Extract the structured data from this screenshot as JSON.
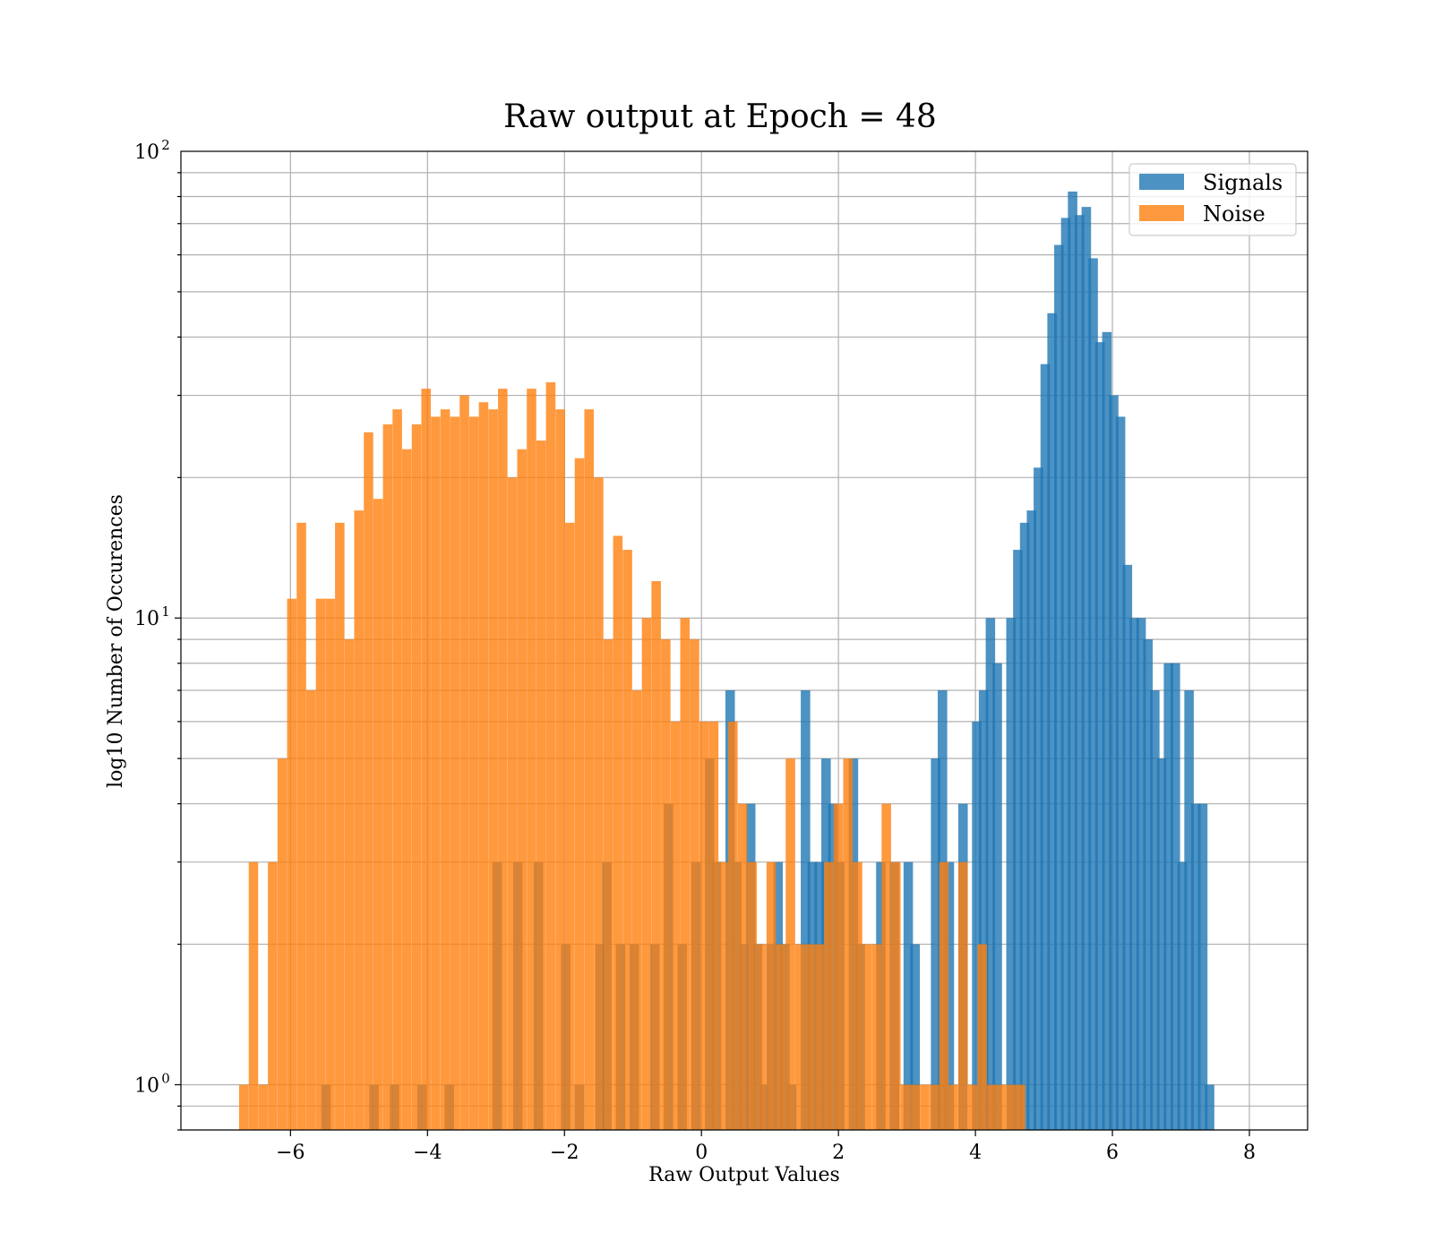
{
  "chart_data": {
    "type": "bar",
    "title": "Raw output at Epoch = 48",
    "xlabel": "Raw Output Values",
    "ylabel": "log10 Number of Occurences",
    "yscale": "log",
    "xlim": [
      -7.6,
      8.85
    ],
    "ylim": [
      0.8,
      100
    ],
    "grid": true,
    "legend_position": "top-right",
    "x_ticks": [
      {
        "value": -6,
        "label": "−6"
      },
      {
        "value": -4,
        "label": "−4"
      },
      {
        "value": -2,
        "label": "−2"
      },
      {
        "value": 0,
        "label": "0"
      },
      {
        "value": 2,
        "label": "2"
      },
      {
        "value": 4,
        "label": "4"
      },
      {
        "value": 6,
        "label": "6"
      },
      {
        "value": 8,
        "label": "8"
      }
    ],
    "y_ticks": [
      {
        "value": 1,
        "base": "10",
        "exp": "0"
      },
      {
        "value": 10,
        "base": "10",
        "exp": "1"
      },
      {
        "value": 100,
        "base": "10",
        "exp": "2"
      }
    ],
    "series": [
      {
        "name": "Signals",
        "color": "#1f77b4",
        "opacity": 0.8,
        "bin_width": 0.138,
        "bins": [
          [
            -5.55,
            1
          ],
          [
            -4.85,
            1
          ],
          [
            -4.55,
            1
          ],
          [
            -4.15,
            1
          ],
          [
            -3.75,
            1
          ],
          [
            -3.05,
            3
          ],
          [
            -2.75,
            3
          ],
          [
            -2.45,
            3
          ],
          [
            -2.05,
            2
          ],
          [
            -1.85,
            1
          ],
          [
            -1.55,
            2
          ],
          [
            -1.45,
            3
          ],
          [
            -1.25,
            2
          ],
          [
            -1.05,
            2
          ],
          [
            -0.75,
            2
          ],
          [
            -0.55,
            4
          ],
          [
            -0.35,
            2
          ],
          [
            -0.15,
            3
          ],
          [
            0.05,
            5
          ],
          [
            0.15,
            3
          ],
          [
            0.35,
            7
          ],
          [
            0.45,
            3
          ],
          [
            0.55,
            2
          ],
          [
            0.65,
            4
          ],
          [
            0.75,
            2
          ],
          [
            0.85,
            1
          ],
          [
            0.95,
            2
          ],
          [
            1.05,
            3
          ],
          [
            1.15,
            2
          ],
          [
            1.25,
            1
          ],
          [
            1.45,
            7
          ],
          [
            1.55,
            3
          ],
          [
            1.65,
            3
          ],
          [
            1.75,
            5
          ],
          [
            1.85,
            4
          ],
          [
            1.95,
            3
          ],
          [
            2.15,
            5
          ],
          [
            2.25,
            2
          ],
          [
            2.55,
            3
          ],
          [
            2.75,
            3
          ],
          [
            2.95,
            3
          ],
          [
            3.05,
            2
          ],
          [
            3.35,
            5
          ],
          [
            3.45,
            7
          ],
          [
            3.55,
            3
          ],
          [
            3.75,
            4
          ],
          [
            3.95,
            6
          ],
          [
            4.05,
            7
          ],
          [
            4.15,
            10
          ],
          [
            4.25,
            8
          ],
          [
            4.45,
            10
          ],
          [
            4.55,
            14
          ],
          [
            4.65,
            16
          ],
          [
            4.75,
            17
          ],
          [
            4.85,
            21
          ],
          [
            4.95,
            35
          ],
          [
            5.05,
            45
          ],
          [
            5.15,
            63
          ],
          [
            5.25,
            72
          ],
          [
            5.35,
            82
          ],
          [
            5.45,
            73
          ],
          [
            5.55,
            76
          ],
          [
            5.65,
            59
          ],
          [
            5.75,
            39
          ],
          [
            5.85,
            41
          ],
          [
            5.95,
            30
          ],
          [
            6.05,
            27
          ],
          [
            6.15,
            13
          ],
          [
            6.25,
            10
          ],
          [
            6.35,
            10
          ],
          [
            6.45,
            9
          ],
          [
            6.55,
            7
          ],
          [
            6.65,
            5
          ],
          [
            6.75,
            8
          ],
          [
            6.85,
            8
          ],
          [
            6.95,
            3
          ],
          [
            7.05,
            7
          ],
          [
            7.15,
            4
          ],
          [
            7.25,
            4
          ],
          [
            7.35,
            1
          ]
        ]
      },
      {
        "name": "Noise",
        "color": "#ff7f0e",
        "opacity": 0.8,
        "bin_width": 0.138,
        "bins": [
          [
            -6.75,
            1
          ],
          [
            -6.61,
            3
          ],
          [
            -6.47,
            1
          ],
          [
            -6.33,
            3
          ],
          [
            -6.19,
            5
          ],
          [
            -6.05,
            11
          ],
          [
            -5.91,
            16
          ],
          [
            -5.77,
            7
          ],
          [
            -5.63,
            11
          ],
          [
            -5.49,
            11
          ],
          [
            -5.35,
            16
          ],
          [
            -5.21,
            9
          ],
          [
            -5.07,
            17
          ],
          [
            -4.93,
            25
          ],
          [
            -4.79,
            18
          ],
          [
            -4.65,
            26
          ],
          [
            -4.51,
            28
          ],
          [
            -4.37,
            23
          ],
          [
            -4.23,
            26
          ],
          [
            -4.09,
            31
          ],
          [
            -3.95,
            27
          ],
          [
            -3.81,
            28
          ],
          [
            -3.67,
            27
          ],
          [
            -3.53,
            30
          ],
          [
            -3.39,
            27
          ],
          [
            -3.25,
            29
          ],
          [
            -3.11,
            28
          ],
          [
            -2.97,
            31
          ],
          [
            -2.83,
            20
          ],
          [
            -2.69,
            23
          ],
          [
            -2.55,
            31
          ],
          [
            -2.41,
            24
          ],
          [
            -2.27,
            32
          ],
          [
            -2.13,
            28
          ],
          [
            -1.99,
            16
          ],
          [
            -1.85,
            22
          ],
          [
            -1.71,
            28
          ],
          [
            -1.57,
            20
          ],
          [
            -1.43,
            9
          ],
          [
            -1.29,
            15
          ],
          [
            -1.15,
            14
          ],
          [
            -1.01,
            7
          ],
          [
            -0.87,
            10
          ],
          [
            -0.73,
            12
          ],
          [
            -0.59,
            9
          ],
          [
            -0.45,
            6
          ],
          [
            -0.31,
            10
          ],
          [
            -0.17,
            9
          ],
          [
            -0.03,
            6
          ],
          [
            0.11,
            6
          ],
          [
            0.25,
            3
          ],
          [
            0.39,
            6
          ],
          [
            0.53,
            4
          ],
          [
            0.67,
            3
          ],
          [
            0.81,
            2
          ],
          [
            0.95,
            3
          ],
          [
            1.09,
            2
          ],
          [
            1.23,
            5
          ],
          [
            1.37,
            2
          ],
          [
            1.51,
            2
          ],
          [
            1.65,
            2
          ],
          [
            1.79,
            3
          ],
          [
            1.93,
            4
          ],
          [
            2.07,
            5
          ],
          [
            2.21,
            3
          ],
          [
            2.35,
            2
          ],
          [
            2.49,
            2
          ],
          [
            2.63,
            4
          ],
          [
            2.77,
            3
          ],
          [
            2.91,
            1
          ],
          [
            3.05,
            1
          ],
          [
            3.19,
            1
          ],
          [
            3.33,
            1
          ],
          [
            3.47,
            3
          ],
          [
            3.61,
            1
          ],
          [
            3.75,
            3
          ],
          [
            3.89,
            1
          ],
          [
            4.03,
            2
          ],
          [
            4.17,
            1
          ],
          [
            4.31,
            1
          ],
          [
            4.45,
            1
          ],
          [
            4.59,
            1
          ]
        ]
      }
    ]
  }
}
